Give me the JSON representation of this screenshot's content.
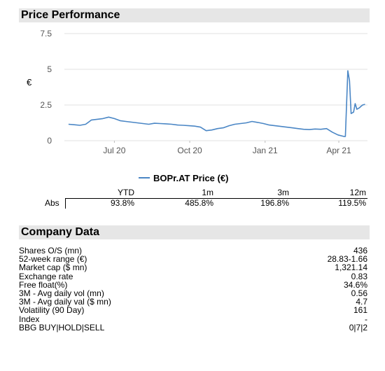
{
  "chart_section": {
    "title": "Price Performance"
  },
  "chart_data": {
    "type": "line",
    "ylabel": "€",
    "ylim": [
      0,
      7.5
    ],
    "yticks": [
      "0",
      "2.5",
      "5",
      "7.5"
    ],
    "xticks": [
      "Jul 20",
      "Oct 20",
      "Jan 21",
      "Apr 21"
    ],
    "series": [
      {
        "name": "BOPr.AT Price (€)",
        "color": "#4a86c5",
        "x": [
          "2020-05-20",
          "2020-05-27",
          "2020-06-03",
          "2020-06-10",
          "2020-06-17",
          "2020-06-24",
          "2020-07-01",
          "2020-07-08",
          "2020-07-15",
          "2020-07-22",
          "2020-07-29",
          "2020-08-05",
          "2020-08-12",
          "2020-08-19",
          "2020-08-26",
          "2020-09-02",
          "2020-09-09",
          "2020-09-16",
          "2020-09-23",
          "2020-09-30",
          "2020-10-07",
          "2020-10-14",
          "2020-10-21",
          "2020-10-28",
          "2020-11-04",
          "2020-11-11",
          "2020-11-18",
          "2020-11-25",
          "2020-12-02",
          "2020-12-09",
          "2020-12-16",
          "2020-12-23",
          "2020-12-30",
          "2021-01-06",
          "2021-01-13",
          "2021-01-20",
          "2021-01-27",
          "2021-02-03",
          "2021-02-10",
          "2021-02-17",
          "2021-02-24",
          "2021-03-03",
          "2021-03-10",
          "2021-03-17",
          "2021-03-24",
          "2021-03-31",
          "2021-04-07",
          "2021-04-14",
          "2021-04-21",
          "2021-04-23",
          "2021-04-26",
          "2021-04-28",
          "2021-04-30",
          "2021-05-03",
          "2021-05-05",
          "2021-05-07",
          "2021-05-10",
          "2021-05-12",
          "2021-05-14",
          "2021-05-17"
        ],
        "values": [
          1.15,
          1.12,
          1.08,
          1.15,
          1.45,
          1.5,
          1.55,
          1.65,
          1.55,
          1.4,
          1.35,
          1.3,
          1.25,
          1.2,
          1.15,
          1.22,
          1.2,
          1.18,
          1.15,
          1.1,
          1.08,
          1.05,
          1.02,
          0.95,
          0.7,
          0.75,
          0.85,
          0.9,
          1.05,
          1.15,
          1.2,
          1.25,
          1.35,
          1.28,
          1.2,
          1.1,
          1.05,
          1.0,
          0.95,
          0.9,
          0.85,
          0.8,
          0.78,
          0.82,
          0.8,
          0.85,
          0.6,
          0.4,
          0.3,
          0.3,
          4.9,
          4.2,
          1.9,
          2.0,
          2.6,
          2.2,
          2.3,
          2.4,
          2.5,
          2.55
        ]
      }
    ]
  },
  "performance": {
    "headers": [
      "YTD",
      "1m",
      "3m",
      "12m"
    ],
    "row_label": "Abs",
    "values": [
      "93.8%",
      "485.8%",
      "196.8%",
      "119.5%"
    ]
  },
  "company_section": {
    "title": "Company Data",
    "rows": [
      {
        "label": "Shares O/S (mn)",
        "value": "436"
      },
      {
        "label": "52-week range (€)",
        "value": "28.83-1.66"
      },
      {
        "label": "Market cap ($ mn)",
        "value": "1,321.14"
      },
      {
        "label": "Exchange rate",
        "value": "0.83"
      },
      {
        "label": "Free float(%)",
        "value": "34.6%"
      },
      {
        "label": "3M - Avg daily vol (mn)",
        "value": "0.56"
      },
      {
        "label": "3M - Avg daily val ($ mn)",
        "value": "4.7"
      },
      {
        "label": "Volatility (90 Day)",
        "value": "161"
      },
      {
        "label": "Index",
        "value": "-"
      },
      {
        "label": "BBG BUY|HOLD|SELL",
        "value": "0|7|2"
      }
    ]
  }
}
